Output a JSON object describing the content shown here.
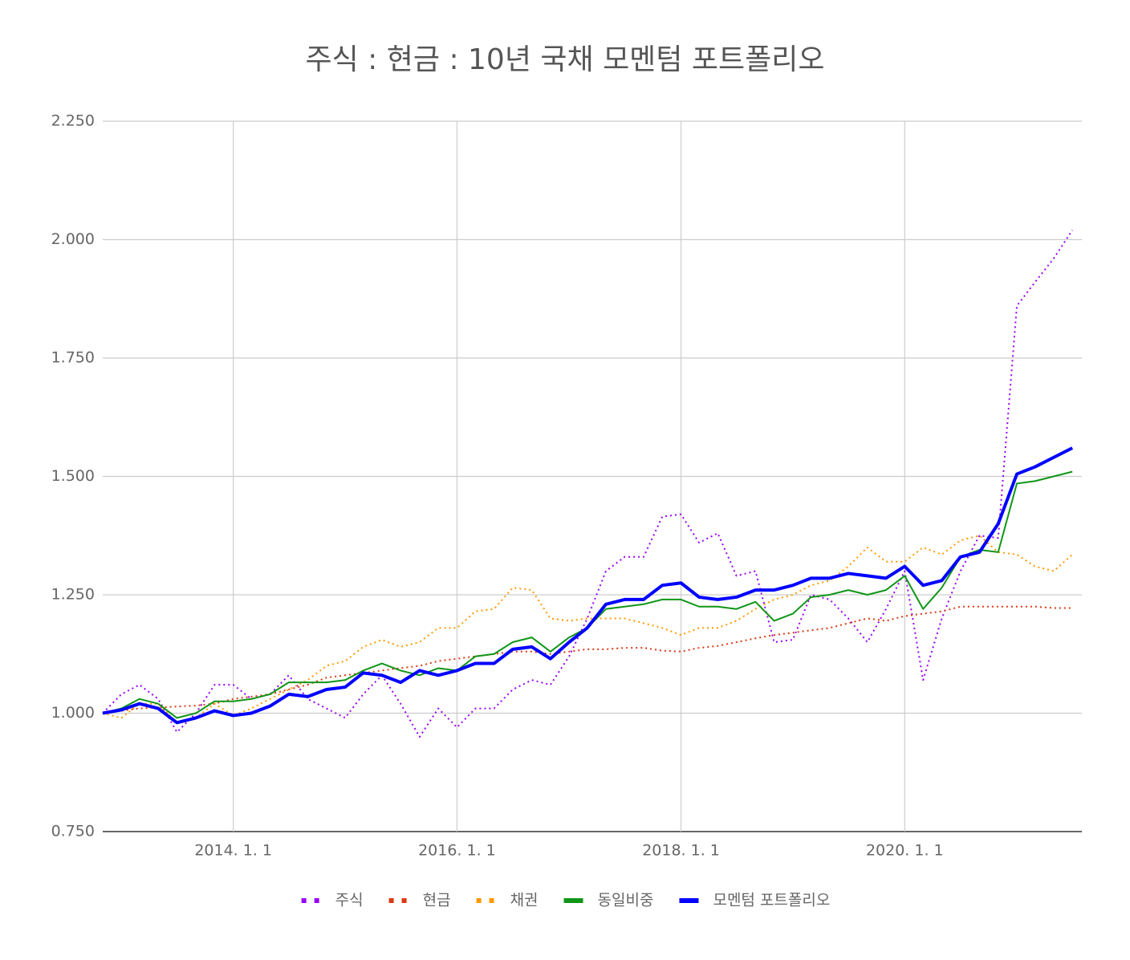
{
  "chart_data": {
    "type": "line",
    "title": "주식 : 현금 : 10년 국채 모멘텀 포트폴리오",
    "x": [
      "2012-11-01",
      "2013-01-01",
      "2013-03-01",
      "2013-05-01",
      "2013-07-01",
      "2013-09-01",
      "2013-11-01",
      "2014-01-01",
      "2014-03-01",
      "2014-05-01",
      "2014-07-01",
      "2014-09-01",
      "2014-11-01",
      "2015-01-01",
      "2015-03-01",
      "2015-05-01",
      "2015-07-01",
      "2015-09-01",
      "2015-11-01",
      "2016-01-01",
      "2016-03-01",
      "2016-05-01",
      "2016-07-01",
      "2016-09-01",
      "2016-11-01",
      "2017-01-01",
      "2017-03-01",
      "2017-05-01",
      "2017-07-01",
      "2017-09-01",
      "2017-11-01",
      "2018-01-01",
      "2018-03-01",
      "2018-05-01",
      "2018-07-01",
      "2018-09-01",
      "2018-11-01",
      "2019-01-01",
      "2019-03-01",
      "2019-05-01",
      "2019-07-01",
      "2019-09-01",
      "2019-11-01",
      "2020-01-01",
      "2020-03-01",
      "2020-05-01",
      "2020-07-01",
      "2020-09-01",
      "2020-11-01",
      "2021-01-01",
      "2021-03-01",
      "2021-05-01",
      "2021-07-01"
    ],
    "series": [
      {
        "name": "주식",
        "color": "#9900ff",
        "style": "dotted",
        "values": [
          1.0,
          1.04,
          1.06,
          1.03,
          0.96,
          1.0,
          1.06,
          1.06,
          1.03,
          1.04,
          1.08,
          1.03,
          1.01,
          0.99,
          1.04,
          1.08,
          1.02,
          0.95,
          1.01,
          0.97,
          1.01,
          1.01,
          1.05,
          1.07,
          1.06,
          1.12,
          1.2,
          1.3,
          1.33,
          1.33,
          1.415,
          1.42,
          1.36,
          1.38,
          1.29,
          1.3,
          1.15,
          1.155,
          1.25,
          1.24,
          1.2,
          1.15,
          1.22,
          1.3,
          1.07,
          1.2,
          1.3,
          1.375,
          1.37,
          1.86,
          1.91,
          1.96,
          2.02
        ]
      },
      {
        "name": "현금",
        "color": "#dc3912",
        "style": "dotted",
        "values": [
          1.0,
          1.005,
          1.01,
          1.012,
          1.014,
          1.016,
          1.02,
          1.03,
          1.035,
          1.04,
          1.05,
          1.06,
          1.075,
          1.08,
          1.085,
          1.09,
          1.095,
          1.1,
          1.11,
          1.115,
          1.12,
          1.125,
          1.13,
          1.13,
          1.125,
          1.13,
          1.135,
          1.135,
          1.138,
          1.138,
          1.132,
          1.13,
          1.138,
          1.142,
          1.15,
          1.158,
          1.165,
          1.17,
          1.175,
          1.18,
          1.19,
          1.2,
          1.195,
          1.205,
          1.21,
          1.215,
          1.225,
          1.225,
          1.225,
          1.225,
          1.225,
          1.222,
          1.222
        ]
      },
      {
        "name": "채권",
        "color": "#ff9900",
        "style": "dotted",
        "values": [
          1.0,
          0.99,
          1.02,
          1.02,
          0.98,
          0.99,
          1.02,
          0.995,
          1.01,
          1.03,
          1.05,
          1.07,
          1.1,
          1.11,
          1.14,
          1.155,
          1.14,
          1.15,
          1.18,
          1.18,
          1.215,
          1.22,
          1.265,
          1.26,
          1.2,
          1.195,
          1.2,
          1.2,
          1.2,
          1.19,
          1.18,
          1.165,
          1.18,
          1.18,
          1.195,
          1.22,
          1.24,
          1.25,
          1.27,
          1.28,
          1.31,
          1.35,
          1.32,
          1.32,
          1.35,
          1.335,
          1.365,
          1.375,
          1.34,
          1.335,
          1.31,
          1.3,
          1.335
        ]
      },
      {
        "name": "동일비중",
        "color": "#109618",
        "style": "thin",
        "values": [
          1.0,
          1.01,
          1.03,
          1.02,
          0.99,
          1.0,
          1.025,
          1.025,
          1.03,
          1.04,
          1.065,
          1.065,
          1.065,
          1.07,
          1.09,
          1.105,
          1.09,
          1.08,
          1.095,
          1.09,
          1.12,
          1.125,
          1.15,
          1.16,
          1.13,
          1.16,
          1.18,
          1.22,
          1.225,
          1.23,
          1.24,
          1.24,
          1.225,
          1.225,
          1.22,
          1.235,
          1.195,
          1.21,
          1.245,
          1.25,
          1.26,
          1.25,
          1.26,
          1.29,
          1.22,
          1.265,
          1.33,
          1.345,
          1.34,
          1.485,
          1.49,
          1.5,
          1.51
        ]
      },
      {
        "name": "모멘텀 포트폴리오",
        "color": "#0000ff",
        "style": "thick",
        "values": [
          1.0,
          1.007,
          1.02,
          1.01,
          0.98,
          0.99,
          1.005,
          0.995,
          1.0,
          1.015,
          1.04,
          1.035,
          1.05,
          1.055,
          1.085,
          1.08,
          1.065,
          1.09,
          1.08,
          1.09,
          1.105,
          1.105,
          1.135,
          1.14,
          1.115,
          1.15,
          1.18,
          1.23,
          1.24,
          1.24,
          1.27,
          1.275,
          1.245,
          1.24,
          1.245,
          1.26,
          1.26,
          1.27,
          1.285,
          1.285,
          1.295,
          1.29,
          1.285,
          1.31,
          1.27,
          1.28,
          1.33,
          1.34,
          1.4,
          1.505,
          1.52,
          1.54,
          1.56
        ]
      }
    ],
    "xlim": [
      "2012-11-01",
      "2021-08-01"
    ],
    "xticks": [
      {
        "value": "2014-01-01",
        "label": "2014. 1. 1"
      },
      {
        "value": "2016-01-01",
        "label": "2016. 1. 1"
      },
      {
        "value": "2018-01-01",
        "label": "2018. 1. 1"
      },
      {
        "value": "2020-01-01",
        "label": "2020. 1. 1"
      }
    ],
    "ylim": [
      0.75,
      2.25
    ],
    "yticks": [
      {
        "value": 0.75,
        "label": "0.750"
      },
      {
        "value": 1.0,
        "label": "1.000"
      },
      {
        "value": 1.25,
        "label": "1.250"
      },
      {
        "value": 1.5,
        "label": "1.500"
      },
      {
        "value": 1.75,
        "label": "1.750"
      },
      {
        "value": 2.0,
        "label": "2.000"
      },
      {
        "value": 2.25,
        "label": "2.250"
      }
    ],
    "grid": true,
    "legend": "bottom"
  }
}
